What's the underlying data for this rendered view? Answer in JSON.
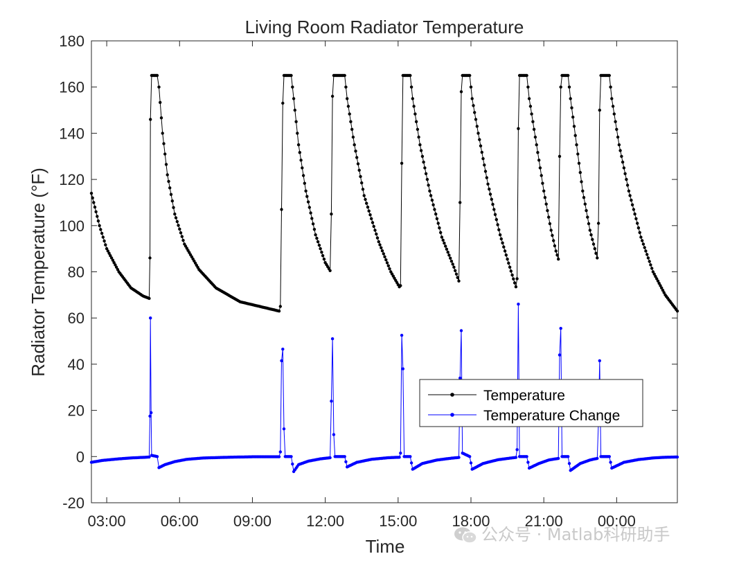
{
  "chart_data": {
    "type": "line",
    "title": "Living Room Radiator Temperature",
    "xlabel": "Time",
    "ylabel": "Radiator Temperature (°F)",
    "x_unit": "hours (clock time, wrapping past midnight)",
    "xlim": [
      2.37,
      26.5
    ],
    "ylim": [
      -20,
      180
    ],
    "xticks": [
      3,
      6,
      9,
      12,
      15,
      18,
      21,
      24
    ],
    "xtick_labels": [
      "03:00",
      "06:00",
      "09:00",
      "12:00",
      "15:00",
      "18:00",
      "21:00",
      "00:00"
    ],
    "yticks": [
      -20,
      0,
      20,
      40,
      60,
      80,
      100,
      120,
      140,
      160,
      180
    ],
    "ytick_labels": [
      "-20",
      "0",
      "20",
      "40",
      "60",
      "80",
      "100",
      "120",
      "140",
      "160",
      "180"
    ],
    "grid": false,
    "legend_position": "lower-right",
    "series": [
      {
        "name": "Temperature",
        "color": "#000000",
        "marker": "dot",
        "points": [
          [
            2.37,
            114
          ],
          [
            2.7,
            100
          ],
          [
            3.0,
            90
          ],
          [
            3.5,
            80
          ],
          [
            4.0,
            73
          ],
          [
            4.5,
            69.5
          ],
          [
            4.75,
            68.5
          ],
          [
            4.78,
            86
          ],
          [
            4.8,
            146
          ],
          [
            4.85,
            165
          ],
          [
            5.08,
            165
          ],
          [
            5.15,
            160
          ],
          [
            5.3,
            140
          ],
          [
            5.5,
            122
          ],
          [
            5.8,
            105
          ],
          [
            6.2,
            92
          ],
          [
            6.8,
            81
          ],
          [
            7.5,
            73
          ],
          [
            8.5,
            67
          ],
          [
            9.5,
            64.5
          ],
          [
            10.1,
            63
          ],
          [
            10.15,
            65
          ],
          [
            10.2,
            107
          ],
          [
            10.25,
            153
          ],
          [
            10.3,
            165
          ],
          [
            10.6,
            165
          ],
          [
            10.7,
            155
          ],
          [
            10.9,
            135
          ],
          [
            11.2,
            115
          ],
          [
            11.6,
            96
          ],
          [
            12.0,
            84
          ],
          [
            12.2,
            80.5
          ],
          [
            12.25,
            105
          ],
          [
            12.3,
            156
          ],
          [
            12.35,
            165
          ],
          [
            12.8,
            165
          ],
          [
            12.9,
            155
          ],
          [
            13.2,
            135
          ],
          [
            13.6,
            113
          ],
          [
            14.2,
            93
          ],
          [
            14.7,
            80
          ],
          [
            15.05,
            73.5
          ],
          [
            15.1,
            74
          ],
          [
            15.15,
            127
          ],
          [
            15.2,
            165
          ],
          [
            15.5,
            165
          ],
          [
            15.6,
            155
          ],
          [
            15.9,
            135
          ],
          [
            16.3,
            115
          ],
          [
            16.8,
            95
          ],
          [
            17.3,
            82
          ],
          [
            17.5,
            76
          ],
          [
            17.55,
            110
          ],
          [
            17.6,
            158
          ],
          [
            17.65,
            165
          ],
          [
            17.95,
            165
          ],
          [
            18.05,
            155
          ],
          [
            18.3,
            140
          ],
          [
            18.7,
            118
          ],
          [
            19.2,
            96
          ],
          [
            19.6,
            82
          ],
          [
            19.85,
            73.5
          ],
          [
            19.9,
            77
          ],
          [
            19.95,
            142
          ],
          [
            20.0,
            165
          ],
          [
            20.3,
            165
          ],
          [
            20.4,
            155
          ],
          [
            20.7,
            135
          ],
          [
            21.0,
            115
          ],
          [
            21.3,
            98
          ],
          [
            21.5,
            89
          ],
          [
            21.6,
            85.5
          ],
          [
            21.65,
            130
          ],
          [
            21.7,
            160
          ],
          [
            21.75,
            165
          ],
          [
            22.0,
            165
          ],
          [
            22.1,
            155
          ],
          [
            22.35,
            135
          ],
          [
            22.6,
            115
          ],
          [
            22.9,
            98
          ],
          [
            23.1,
            90
          ],
          [
            23.2,
            86
          ],
          [
            23.25,
            101
          ],
          [
            23.3,
            150
          ],
          [
            23.35,
            165
          ],
          [
            23.7,
            165
          ],
          [
            23.8,
            155
          ],
          [
            24.1,
            135
          ],
          [
            24.5,
            115
          ],
          [
            25.0,
            95
          ],
          [
            25.5,
            80
          ],
          [
            26.0,
            70
          ],
          [
            26.5,
            63
          ]
        ]
      },
      {
        "name": "Temperature Change",
        "color": "#0000ff",
        "marker": "dot",
        "points": [
          [
            2.37,
            -2.5
          ],
          [
            2.8,
            -1.7
          ],
          [
            3.5,
            -1.0
          ],
          [
            4.0,
            -0.6
          ],
          [
            4.6,
            -0.3
          ],
          [
            4.75,
            -0.2
          ],
          [
            4.78,
            17.5
          ],
          [
            4.8,
            60
          ],
          [
            4.83,
            19
          ],
          [
            4.85,
            0.5
          ],
          [
            5.08,
            0
          ],
          [
            5.15,
            -4.8
          ],
          [
            5.4,
            -3.5
          ],
          [
            5.8,
            -2.2
          ],
          [
            6.3,
            -1.2
          ],
          [
            7.0,
            -0.6
          ],
          [
            8.0,
            -0.3
          ],
          [
            9.0,
            -0.1
          ],
          [
            10.1,
            -0.1
          ],
          [
            10.15,
            2
          ],
          [
            10.2,
            41.5
          ],
          [
            10.25,
            46.5
          ],
          [
            10.3,
            12
          ],
          [
            10.35,
            0
          ],
          [
            10.6,
            0
          ],
          [
            10.7,
            -6.5
          ],
          [
            10.9,
            -3.5
          ],
          [
            11.3,
            -2
          ],
          [
            11.8,
            -1
          ],
          [
            12.2,
            -0.5
          ],
          [
            12.25,
            24
          ],
          [
            12.3,
            51
          ],
          [
            12.35,
            9.5
          ],
          [
            12.4,
            0
          ],
          [
            12.8,
            0
          ],
          [
            12.9,
            -4.5
          ],
          [
            13.3,
            -2.5
          ],
          [
            13.9,
            -1.2
          ],
          [
            14.6,
            -0.5
          ],
          [
            15.05,
            -0.3
          ],
          [
            15.1,
            1.5
          ],
          [
            15.15,
            52.5
          ],
          [
            15.2,
            38
          ],
          [
            15.25,
            0
          ],
          [
            15.5,
            0
          ],
          [
            15.6,
            -5.5
          ],
          [
            16.0,
            -3
          ],
          [
            16.6,
            -1.5
          ],
          [
            17.2,
            -0.7
          ],
          [
            17.5,
            -0.4
          ],
          [
            17.55,
            34
          ],
          [
            17.6,
            54.5
          ],
          [
            17.65,
            1.5
          ],
          [
            17.95,
            0
          ],
          [
            18.05,
            -5.5
          ],
          [
            18.5,
            -3
          ],
          [
            19.1,
            -1.4
          ],
          [
            19.6,
            -0.7
          ],
          [
            19.85,
            -0.4
          ],
          [
            19.9,
            3
          ],
          [
            19.95,
            66
          ],
          [
            20.0,
            0
          ],
          [
            20.3,
            0
          ],
          [
            20.4,
            -5
          ],
          [
            20.8,
            -3
          ],
          [
            21.2,
            -1.5
          ],
          [
            21.6,
            -0.8
          ],
          [
            21.65,
            44
          ],
          [
            21.7,
            55.5
          ],
          [
            21.75,
            0
          ],
          [
            22.0,
            0
          ],
          [
            22.1,
            -6
          ],
          [
            22.5,
            -3
          ],
          [
            22.9,
            -1.5
          ],
          [
            23.2,
            -0.8
          ],
          [
            23.25,
            15
          ],
          [
            23.3,
            41.5
          ],
          [
            23.35,
            0
          ],
          [
            23.7,
            0
          ],
          [
            23.8,
            -5
          ],
          [
            24.3,
            -2.5
          ],
          [
            24.9,
            -1.3
          ],
          [
            25.5,
            -0.6
          ],
          [
            26.0,
            -0.3
          ],
          [
            26.5,
            -0.2
          ]
        ]
      }
    ]
  },
  "watermark": {
    "text": "公众号 · Matlab科研助手"
  }
}
